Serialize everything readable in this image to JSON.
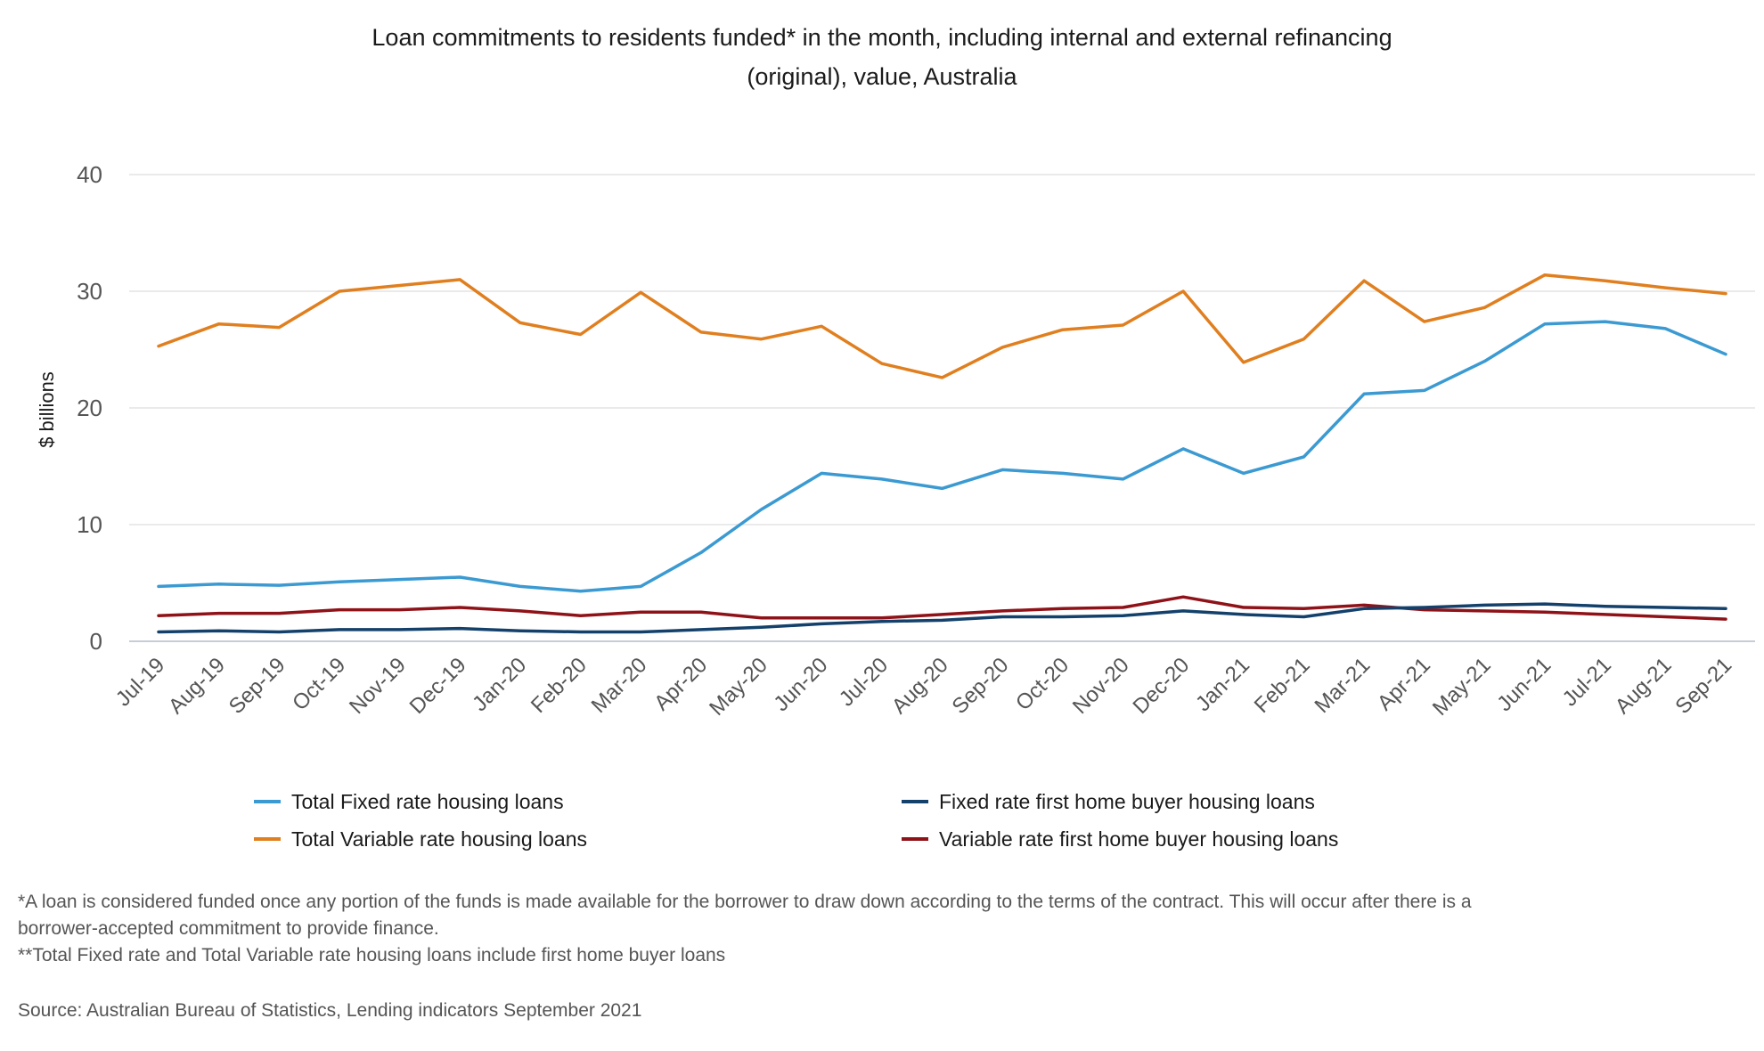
{
  "chart_data": {
    "type": "line",
    "title_lines": [
      "Loan commitments to residents funded* in the month, including internal and external refinancing",
      "(original), value, Australia"
    ],
    "ylabel": "$ billions",
    "xlabel": "",
    "ylim": [
      0,
      40
    ],
    "yticks": [
      0,
      10,
      20,
      30,
      40
    ],
    "grid": true,
    "legend_position": "bottom",
    "categories": [
      "Jul-19",
      "Aug-19",
      "Sep-19",
      "Oct-19",
      "Nov-19",
      "Dec-19",
      "Jan-20",
      "Feb-20",
      "Mar-20",
      "Apr-20",
      "May-20",
      "Jun-20",
      "Jul-20",
      "Aug-20",
      "Sep-20",
      "Oct-20",
      "Nov-20",
      "Dec-20",
      "Jan-21",
      "Feb-21",
      "Mar-21",
      "Apr-21",
      "May-21",
      "Jun-21",
      "Jul-21",
      "Aug-21",
      "Sep-21"
    ],
    "series": [
      {
        "name": "Total Fixed rate housing loans",
        "color": "#3b9ad2",
        "values": [
          4.7,
          4.9,
          4.8,
          5.1,
          5.3,
          5.5,
          4.7,
          4.3,
          4.7,
          7.6,
          11.3,
          14.4,
          13.9,
          13.1,
          14.7,
          14.4,
          13.9,
          16.5,
          14.4,
          15.8,
          21.2,
          21.5,
          24.0,
          27.2,
          27.4,
          26.8,
          24.6
        ]
      },
      {
        "name": "Total Variable rate housing loans",
        "color": "#e07f1f",
        "values": [
          25.3,
          27.2,
          26.9,
          30.0,
          30.5,
          31.0,
          27.3,
          26.3,
          29.9,
          26.5,
          25.9,
          27.0,
          23.8,
          22.6,
          25.2,
          26.7,
          27.1,
          30.0,
          23.9,
          25.9,
          30.9,
          27.4,
          28.6,
          31.4,
          30.9,
          30.3,
          29.8
        ]
      },
      {
        "name": "Fixed rate first home buyer housing loans",
        "color": "#14416b",
        "values": [
          0.8,
          0.9,
          0.8,
          1.0,
          1.0,
          1.1,
          0.9,
          0.8,
          0.8,
          1.0,
          1.2,
          1.5,
          1.7,
          1.8,
          2.1,
          2.1,
          2.2,
          2.6,
          2.3,
          2.1,
          2.8,
          2.9,
          3.1,
          3.2,
          3.0,
          2.9,
          2.8
        ]
      },
      {
        "name": "Variable rate first home buyer housing loans",
        "color": "#8e1218",
        "values": [
          2.2,
          2.4,
          2.4,
          2.7,
          2.7,
          2.9,
          2.6,
          2.2,
          2.5,
          2.5,
          2.0,
          2.0,
          2.0,
          2.3,
          2.6,
          2.8,
          2.9,
          3.8,
          2.9,
          2.8,
          3.1,
          2.7,
          2.6,
          2.5,
          2.3,
          2.1,
          1.9
        ]
      }
    ]
  },
  "footnotes": [
    "*A loan is considered funded once any portion of the funds is made available for the borrower to draw down according to the terms of the contract. This will occur after there is a",
    "borrower-accepted commitment to provide finance.",
    "**Total Fixed rate and Total Variable rate housing loans include first home buyer loans"
  ],
  "source": "Source: Australian Bureau of Statistics, Lending indicators September 2021"
}
